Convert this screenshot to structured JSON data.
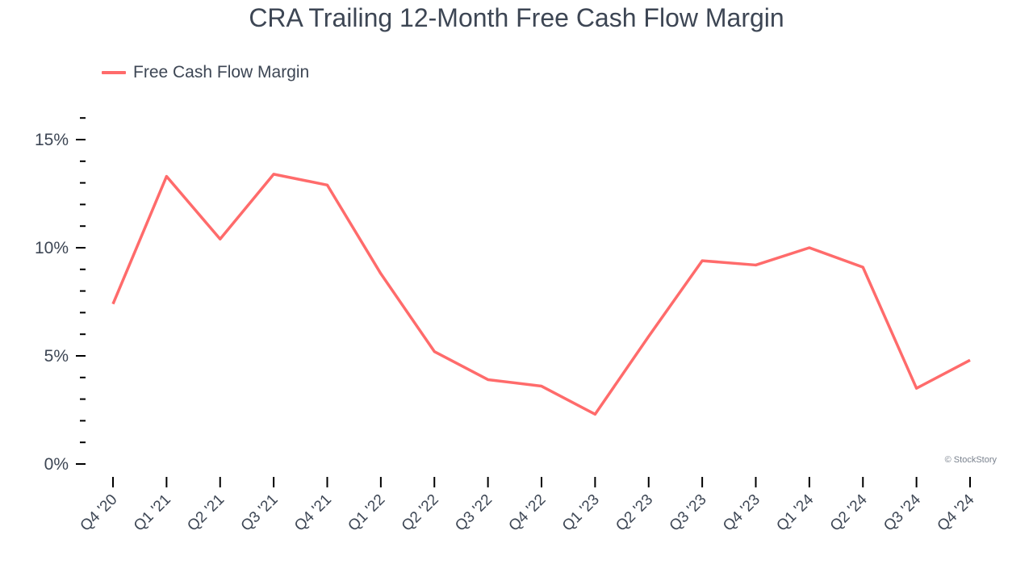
{
  "title": "CRA Trailing 12-Month Free Cash Flow Margin",
  "legend": {
    "label": "Free Cash Flow Margin",
    "color": "#ff6b6b"
  },
  "watermark": "© StockStory",
  "colors": {
    "line": "#ff6b6b",
    "text": "#3d4654",
    "axis": "#000000"
  },
  "chart_data": {
    "type": "line",
    "title": "CRA Trailing 12-Month Free Cash Flow Margin",
    "xlabel": "",
    "ylabel": "",
    "ylim": [
      0,
      16
    ],
    "grid": false,
    "legend_position": "top-left",
    "yticks": [
      0,
      5,
      10,
      15
    ],
    "ytick_labels": [
      "0%",
      "5%",
      "10%",
      "15%"
    ],
    "categories": [
      "Q4 '20",
      "Q1 '21",
      "Q2 '21",
      "Q3 '21",
      "Q4 '21",
      "Q1 '22",
      "Q2 '22",
      "Q3 '22",
      "Q4 '22",
      "Q1 '23",
      "Q2 '23",
      "Q3 '23",
      "Q4 '23",
      "Q1 '24",
      "Q2 '24",
      "Q3 '24",
      "Q4 '24"
    ],
    "series": [
      {
        "name": "Free Cash Flow Margin",
        "color": "#ff6b6b",
        "values": [
          7.4,
          13.3,
          10.4,
          13.4,
          12.9,
          8.8,
          5.2,
          3.9,
          3.6,
          2.3,
          5.9,
          9.4,
          9.2,
          10.0,
          9.1,
          3.5,
          4.8
        ]
      }
    ]
  }
}
